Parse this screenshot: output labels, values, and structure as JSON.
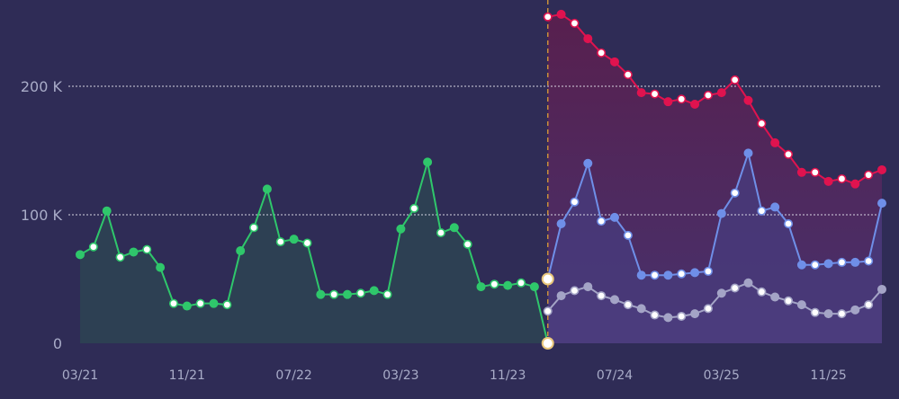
{
  "chart_data": {
    "type": "line",
    "colors": {
      "background": "#2f2c56",
      "grid": "#e6e6f0",
      "forecast_divider": "#c8903a",
      "historical": "#2fc76b",
      "forecast_high": "#e0134f",
      "forecast_mid": "#6f8fe8",
      "forecast_low": "#a4a4c6"
    },
    "grid": true,
    "ylim": [
      0,
      260000
    ],
    "y_ticks": [
      {
        "value": 0,
        "label": "0"
      },
      {
        "value": 100000,
        "label": "100  K"
      },
      {
        "value": 200000,
        "label": "200  K"
      }
    ],
    "x_ticks": [
      {
        "index": 0,
        "label": "03/21"
      },
      {
        "index": 8,
        "label": "11/21"
      },
      {
        "index": 16,
        "label": "07/22"
      },
      {
        "index": 24,
        "label": "03/23"
      },
      {
        "index": 32,
        "label": "11/23"
      },
      {
        "index": 40,
        "label": "07/24"
      },
      {
        "index": 48,
        "label": "03/25"
      },
      {
        "index": 56,
        "label": "11/25"
      }
    ],
    "n_points": 61,
    "forecast_start_index": 35,
    "series": [
      {
        "key": "historical",
        "start_index": 0,
        "values": [
          69000,
          75000,
          103000,
          67000,
          71000,
          73000,
          59000,
          31000,
          29000,
          31000,
          31000,
          30000,
          72000,
          90000,
          120000,
          79000,
          81000,
          78000,
          38000,
          38000,
          38000,
          39000,
          41000,
          38000,
          89000,
          105000,
          141000,
          86000,
          90000,
          77000,
          44000,
          46000,
          45000,
          47000,
          44000,
          0
        ]
      },
      {
        "key": "forecast_high",
        "start_index": 35,
        "values": [
          254000,
          256000,
          249000,
          237000,
          226000,
          219000,
          209000,
          195000,
          194000,
          188000,
          190000,
          186000,
          193000,
          195000,
          205000,
          189000,
          171000,
          156000,
          147000,
          133000,
          133000,
          126000,
          128000,
          124000,
          131000,
          135000
        ]
      },
      {
        "key": "forecast_mid",
        "start_index": 35,
        "values": [
          50000,
          93000,
          110000,
          140000,
          95000,
          98000,
          84000,
          53000,
          53000,
          53000,
          54000,
          55000,
          56000,
          101000,
          117000,
          148000,
          103000,
          106000,
          93000,
          61000,
          61000,
          62000,
          63000,
          63000,
          64000,
          109000
        ]
      },
      {
        "key": "forecast_low",
        "start_index": 35,
        "values": [
          25000,
          37000,
          41000,
          44000,
          37000,
          34000,
          30000,
          27000,
          22000,
          20000,
          21000,
          23000,
          27000,
          39000,
          43000,
          47000,
          40000,
          36000,
          33000,
          30000,
          24000,
          23000,
          23000,
          26000,
          30000,
          42000
        ]
      }
    ]
  }
}
